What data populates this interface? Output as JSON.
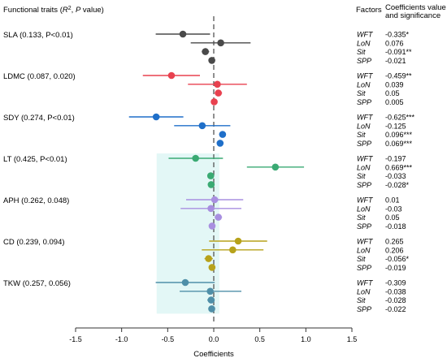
{
  "chart_data": {
    "type": "forest",
    "title_left": "Functional traits (",
    "title_r2": "R",
    "title_sup": "2",
    "title_sep": ", ",
    "title_p": "P",
    "title_tail": " value)",
    "header_factors": "Factors",
    "header_coef_line1": "Coefficients value",
    "header_coef_line2": "and significance",
    "xlabel": "Coefficients",
    "xlim": [
      -1.5,
      1.5
    ],
    "xticks": [
      -1.5,
      -1.0,
      -0.5,
      0.0,
      0.5,
      1.0,
      1.5
    ],
    "xtick_labels": [
      "-1.5",
      "-1.0",
      "-0.5",
      "0.0",
      "0.5",
      "1.0",
      "1.5"
    ],
    "reference_line": 0,
    "groups": [
      {
        "trait": "SLA (0.133, P<0.01)",
        "color": "#4a4a4a",
        "rows": [
          {
            "factor": "WFT",
            "value": -0.335,
            "lo": -0.63,
            "hi": -0.04,
            "coef_label": "-0.335*"
          },
          {
            "factor": "LoN",
            "value": 0.076,
            "lo": -0.25,
            "hi": 0.4,
            "coef_label": "0.076"
          },
          {
            "factor": "Sit",
            "value": -0.091,
            "lo": -0.13,
            "hi": -0.05,
            "coef_label": "-0.091**"
          },
          {
            "factor": "SPP",
            "value": -0.021,
            "lo": -0.05,
            "hi": 0.01,
            "coef_label": "-0.021"
          }
        ]
      },
      {
        "trait": "LDMC (0.087, 0.020)",
        "color": "#e8414f",
        "rows": [
          {
            "factor": "WFT",
            "value": -0.459,
            "lo": -0.77,
            "hi": -0.15,
            "coef_label": "-0.459**"
          },
          {
            "factor": "LoN",
            "value": 0.039,
            "lo": -0.28,
            "hi": 0.36,
            "coef_label": "0.039"
          },
          {
            "factor": "Sit",
            "value": 0.05,
            "lo": 0.01,
            "hi": 0.09,
            "coef_label": "0.05"
          },
          {
            "factor": "SPP",
            "value": 0.005,
            "lo": -0.02,
            "hi": 0.03,
            "coef_label": "0.005"
          }
        ]
      },
      {
        "trait": "SDY (0.274, P<0.01)",
        "color": "#1f6fc9",
        "rows": [
          {
            "factor": "WFT",
            "value": -0.625,
            "lo": -0.92,
            "hi": -0.33,
            "coef_label": "-0.625***"
          },
          {
            "factor": "LoN",
            "value": -0.125,
            "lo": -0.43,
            "hi": 0.18,
            "coef_label": "-0.125"
          },
          {
            "factor": "Sit",
            "value": 0.096,
            "lo": 0.06,
            "hi": 0.13,
            "coef_label": "0.096***"
          },
          {
            "factor": "SPP",
            "value": 0.069,
            "lo": 0.04,
            "hi": 0.1,
            "coef_label": "0.069***"
          }
        ]
      },
      {
        "trait": "LT (0.425, P<0.01)",
        "color": "#3aaa73",
        "rows": [
          {
            "factor": "WFT",
            "value": -0.197,
            "lo": -0.49,
            "hi": 0.1,
            "coef_label": "-0.197"
          },
          {
            "factor": "LoN",
            "value": 0.669,
            "lo": 0.36,
            "hi": 0.98,
            "coef_label": "0.669***"
          },
          {
            "factor": "Sit",
            "value": -0.033,
            "lo": -0.07,
            "hi": 0.0,
            "coef_label": "-0.033"
          },
          {
            "factor": "SPP",
            "value": -0.028,
            "lo": -0.05,
            "hi": -0.005,
            "coef_label": "-0.028*"
          }
        ]
      },
      {
        "trait": "APH (0.262, 0.048)",
        "color": "#a88fe0",
        "rows": [
          {
            "factor": "WFT",
            "value": 0.01,
            "lo": -0.3,
            "hi": 0.32,
            "coef_label": "0.01"
          },
          {
            "factor": "LoN",
            "value": -0.03,
            "lo": -0.36,
            "hi": 0.3,
            "coef_label": "-0.03"
          },
          {
            "factor": "Sit",
            "value": 0.05,
            "lo": 0.01,
            "hi": 0.09,
            "coef_label": "0.05"
          },
          {
            "factor": "SPP",
            "value": -0.018,
            "lo": -0.05,
            "hi": 0.01,
            "coef_label": "-0.018"
          }
        ]
      },
      {
        "trait": "CD (0.239, 0.094)",
        "color": "#b7a21b",
        "rows": [
          {
            "factor": "WFT",
            "value": 0.265,
            "lo": -0.05,
            "hi": 0.58,
            "coef_label": "0.265"
          },
          {
            "factor": "LoN",
            "value": 0.206,
            "lo": -0.13,
            "hi": 0.54,
            "coef_label": "0.206"
          },
          {
            "factor": "Sit",
            "value": -0.056,
            "lo": -0.1,
            "hi": -0.01,
            "coef_label": "-0.056*"
          },
          {
            "factor": "SPP",
            "value": -0.019,
            "lo": -0.05,
            "hi": 0.01,
            "coef_label": "-0.019"
          }
        ]
      },
      {
        "trait": "TKW (0.257, 0.056)",
        "color": "#4f8fa8",
        "rows": [
          {
            "factor": "WFT",
            "value": -0.309,
            "lo": -0.63,
            "hi": 0.01,
            "coef_label": "-0.309"
          },
          {
            "factor": "LoN",
            "value": -0.038,
            "lo": -0.37,
            "hi": 0.3,
            "coef_label": "-0.038"
          },
          {
            "factor": "Sit",
            "value": -0.028,
            "lo": -0.07,
            "hi": 0.01,
            "coef_label": "-0.028"
          },
          {
            "factor": "SPP",
            "value": -0.022,
            "lo": -0.05,
            "hi": 0.01,
            "coef_label": "-0.022"
          }
        ]
      }
    ]
  }
}
